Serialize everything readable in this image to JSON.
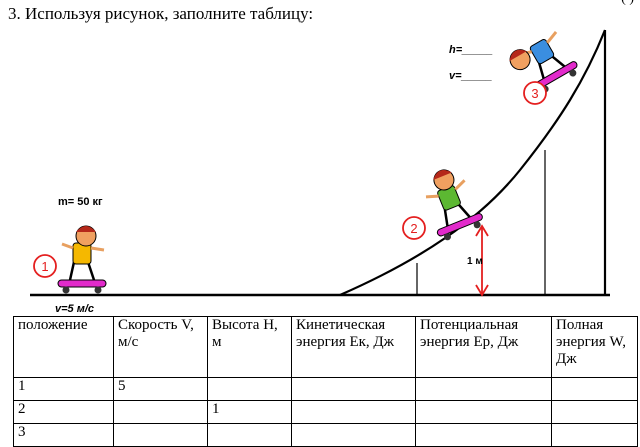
{
  "task": {
    "title": "3. Используя рисунок, заполните таблицу:",
    "corner_fragment": "( )"
  },
  "figure": {
    "mass_label": "m= 50 кг",
    "speed_label": "v=5 м/с",
    "h_label": "h=_____",
    "v_label": "v=_____",
    "height_label": "1 м",
    "position_markers": [
      "1",
      "2",
      "3"
    ]
  },
  "table": {
    "headers": [
      "положение",
      "Скорость V, м/с",
      "Высота H, м",
      "Кинетическая энергия Eк, Дж",
      "Потенциальная энергия Eр, Дж",
      "Полная энергия W, Дж"
    ],
    "rows": [
      [
        "1",
        "5",
        "",
        "",
        "",
        ""
      ],
      [
        "2",
        "",
        "1",
        "",
        "",
        ""
      ],
      [
        "3",
        "",
        "",
        "",
        "",
        ""
      ]
    ]
  }
}
